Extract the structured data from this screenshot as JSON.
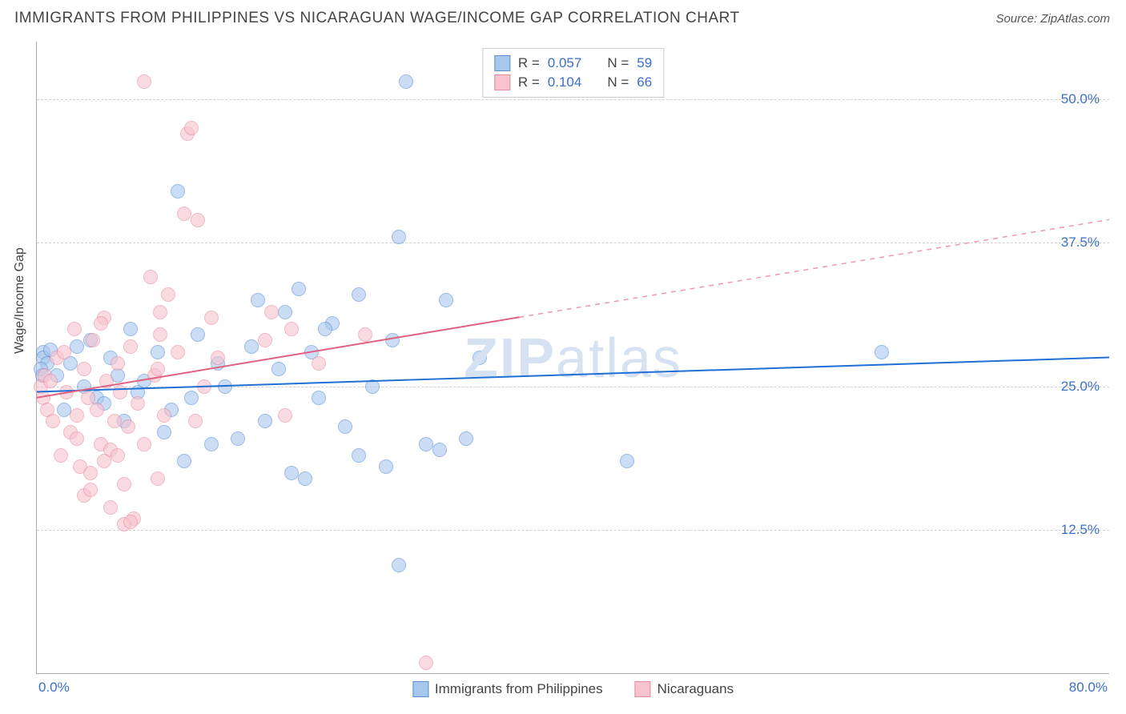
{
  "title": "IMMIGRANTS FROM PHILIPPINES VS NICARAGUAN WAGE/INCOME GAP CORRELATION CHART",
  "source": "Source: ZipAtlas.com",
  "watermark_bold": "ZIP",
  "watermark_light": "atlas",
  "chart": {
    "type": "scatter",
    "ylabel": "Wage/Income Gap",
    "xlim": [
      0,
      80
    ],
    "ylim": [
      0,
      55
    ],
    "xticks": [
      {
        "value": 0,
        "label": "0.0%"
      },
      {
        "value": 80,
        "label": "80.0%"
      }
    ],
    "yticks": [
      {
        "value": 12.5,
        "label": "12.5%"
      },
      {
        "value": 25.0,
        "label": "25.0%"
      },
      {
        "value": 37.5,
        "label": "37.5%"
      },
      {
        "value": 50.0,
        "label": "50.0%"
      }
    ],
    "gridlines_y": [
      12.5,
      25.0,
      37.5,
      50.0
    ],
    "gridline_color": "#d0d0d0",
    "background_color": "#ffffff",
    "legend_top": [
      {
        "swatch": "blue",
        "r_label": "R =",
        "r_value": "0.057",
        "n_label": "N =",
        "n_value": "59"
      },
      {
        "swatch": "pink",
        "r_label": "R =",
        "r_value": "0.104",
        "n_label": "N =",
        "n_value": "66"
      }
    ],
    "legend_bottom": [
      {
        "swatch": "blue",
        "label": "Immigrants from Philippines"
      },
      {
        "swatch": "pink",
        "label": "Nicaraguans"
      }
    ],
    "series": [
      {
        "name": "Immigrants from Philippines",
        "color_fill": "#a8c7ed",
        "color_stroke": "#5a8fd6",
        "marker_size": 18,
        "trend": {
          "x1": 0,
          "y1": 24.5,
          "x2": 80,
          "y2": 27.5,
          "color": "#1f6fd4",
          "width": 2,
          "dash": "none"
        },
        "points": [
          [
            0.5,
            28.0
          ],
          [
            0.5,
            27.5
          ],
          [
            0.8,
            27.0
          ],
          [
            0.3,
            26.5
          ],
          [
            1.0,
            28.2
          ],
          [
            0.4,
            26.0
          ],
          [
            1.5,
            26.0
          ],
          [
            2.0,
            23.0
          ],
          [
            2.5,
            27.0
          ],
          [
            3.0,
            28.5
          ],
          [
            3.5,
            25.0
          ],
          [
            4.0,
            29.0
          ],
          [
            4.5,
            24.0
          ],
          [
            5.0,
            23.5
          ],
          [
            5.5,
            27.5
          ],
          [
            6.0,
            26.0
          ],
          [
            6.5,
            22.0
          ],
          [
            7.0,
            30.0
          ],
          [
            7.5,
            24.5
          ],
          [
            8.0,
            25.5
          ],
          [
            9.0,
            28.0
          ],
          [
            9.5,
            21.0
          ],
          [
            10.0,
            23.0
          ],
          [
            10.5,
            42.0
          ],
          [
            11.0,
            18.5
          ],
          [
            11.5,
            24.0
          ],
          [
            12.0,
            29.5
          ],
          [
            13.0,
            20.0
          ],
          [
            13.5,
            27.0
          ],
          [
            14.0,
            25.0
          ],
          [
            15.0,
            20.5
          ],
          [
            16.0,
            28.5
          ],
          [
            17.0,
            22.0
          ],
          [
            18.0,
            26.5
          ],
          [
            18.5,
            31.5
          ],
          [
            19.0,
            17.5
          ],
          [
            19.5,
            33.5
          ],
          [
            20.0,
            17.0
          ],
          [
            20.5,
            28.0
          ],
          [
            21.0,
            24.0
          ],
          [
            22.0,
            30.5
          ],
          [
            23.0,
            21.5
          ],
          [
            24.0,
            19.0
          ],
          [
            24.0,
            33.0
          ],
          [
            25.0,
            25.0
          ],
          [
            26.0,
            18.0
          ],
          [
            26.5,
            29.0
          ],
          [
            27.0,
            38.0
          ],
          [
            27.5,
            51.5
          ],
          [
            30.0,
            19.5
          ],
          [
            30.5,
            32.5
          ],
          [
            32.0,
            20.5
          ],
          [
            33.0,
            27.5
          ],
          [
            44.0,
            18.5
          ],
          [
            63.0,
            28.0
          ],
          [
            27.0,
            9.5
          ],
          [
            29.0,
            20.0
          ],
          [
            21.5,
            30.0
          ],
          [
            16.5,
            32.5
          ]
        ]
      },
      {
        "name": "Nicaraguans",
        "color_fill": "#f7c3ce",
        "color_stroke": "#e78ba0",
        "marker_size": 18,
        "trend_solid": {
          "x1": 0,
          "y1": 24.0,
          "x2": 36,
          "y2": 31.0,
          "color": "#e0607f",
          "width": 2
        },
        "trend_dash": {
          "x1": 36,
          "y1": 31.0,
          "x2": 80,
          "y2": 39.5,
          "color": "#e99aad",
          "width": 1.5
        },
        "points": [
          [
            0.3,
            25.0
          ],
          [
            0.5,
            24.0
          ],
          [
            0.6,
            26.0
          ],
          [
            0.8,
            23.0
          ],
          [
            1.0,
            25.5
          ],
          [
            1.2,
            22.0
          ],
          [
            1.5,
            27.5
          ],
          [
            1.8,
            19.0
          ],
          [
            2.0,
            28.0
          ],
          [
            2.2,
            24.5
          ],
          [
            2.5,
            21.0
          ],
          [
            2.8,
            30.0
          ],
          [
            3.0,
            22.5
          ],
          [
            3.2,
            18.0
          ],
          [
            3.5,
            26.5
          ],
          [
            3.8,
            24.0
          ],
          [
            4.0,
            17.5
          ],
          [
            4.2,
            29.0
          ],
          [
            4.5,
            23.0
          ],
          [
            4.8,
            20.0
          ],
          [
            5.0,
            31.0
          ],
          [
            5.2,
            25.5
          ],
          [
            5.5,
            19.5
          ],
          [
            5.8,
            22.0
          ],
          [
            6.0,
            27.0
          ],
          [
            6.2,
            24.5
          ],
          [
            6.5,
            16.5
          ],
          [
            6.8,
            21.5
          ],
          [
            7.0,
            28.5
          ],
          [
            7.2,
            13.5
          ],
          [
            7.5,
            23.5
          ],
          [
            8.0,
            20.0
          ],
          [
            8.5,
            34.5
          ],
          [
            8.8,
            26.0
          ],
          [
            9.0,
            17.0
          ],
          [
            9.2,
            29.5
          ],
          [
            9.5,
            22.5
          ],
          [
            9.8,
            33.0
          ],
          [
            6.5,
            13.0
          ],
          [
            7.0,
            13.2
          ],
          [
            8.0,
            51.5
          ],
          [
            9.0,
            26.5
          ],
          [
            9.2,
            31.5
          ],
          [
            10.5,
            28.0
          ],
          [
            11.0,
            40.0
          ],
          [
            11.2,
            47.0
          ],
          [
            11.5,
            47.5
          ],
          [
            11.8,
            22.0
          ],
          [
            12.0,
            39.5
          ],
          [
            12.5,
            25.0
          ],
          [
            13.0,
            31.0
          ],
          [
            13.5,
            27.5
          ],
          [
            17.0,
            29.0
          ],
          [
            17.5,
            31.5
          ],
          [
            18.5,
            22.5
          ],
          [
            19.0,
            30.0
          ],
          [
            21.0,
            27.0
          ],
          [
            24.5,
            29.5
          ],
          [
            29.0,
            1.0
          ],
          [
            3.5,
            15.5
          ],
          [
            4.0,
            16.0
          ],
          [
            5.0,
            18.5
          ],
          [
            6.0,
            19.0
          ],
          [
            4.8,
            30.5
          ],
          [
            5.5,
            14.5
          ],
          [
            3.0,
            20.5
          ]
        ]
      }
    ]
  }
}
